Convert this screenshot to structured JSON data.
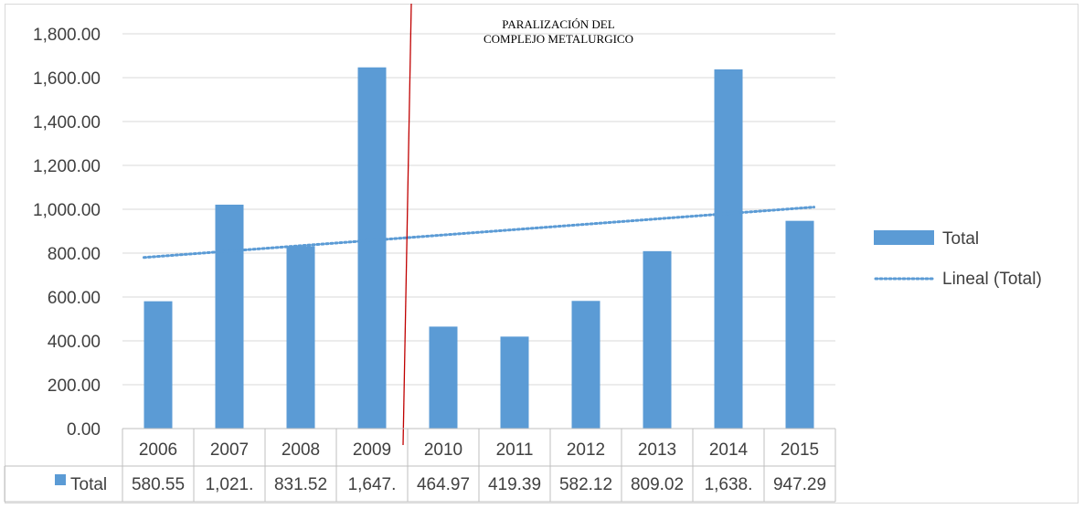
{
  "chart_data": {
    "type": "bar",
    "categories": [
      "2006",
      "2007",
      "2008",
      "2009",
      "2010",
      "2011",
      "2012",
      "2013",
      "2014",
      "2015"
    ],
    "series": [
      {
        "name": "Total",
        "values": [
          580.55,
          1021,
          831.52,
          1647,
          464.97,
          419.39,
          582.12,
          809.02,
          1638,
          947.29
        ],
        "table_labels": [
          "580.55",
          "1,021.",
          "831.52",
          "1,647.",
          "464.97",
          "419.39",
          "582.12",
          "809.02",
          "1,638.",
          "947.29"
        ],
        "color": "#5b9bd5"
      }
    ],
    "trendline": {
      "name": "Lineal (Total)",
      "type": "linear",
      "start": 780,
      "end": 1010,
      "color": "#5b9bd5"
    },
    "ylim": [
      0,
      1800
    ],
    "yticks": [
      "0.00",
      "200.00",
      "400.00",
      "600.00",
      "800.00",
      "1,000.00",
      "1,200.00",
      "1,400.00",
      "1,600.00",
      "1,800.00"
    ],
    "grid": true,
    "legend_position": "right",
    "data_table": true,
    "annotation": {
      "lines": [
        "PARALIZACIÓN DEL",
        "COMPLEJO METALURGICO"
      ],
      "marker_color": "#c00000"
    }
  }
}
